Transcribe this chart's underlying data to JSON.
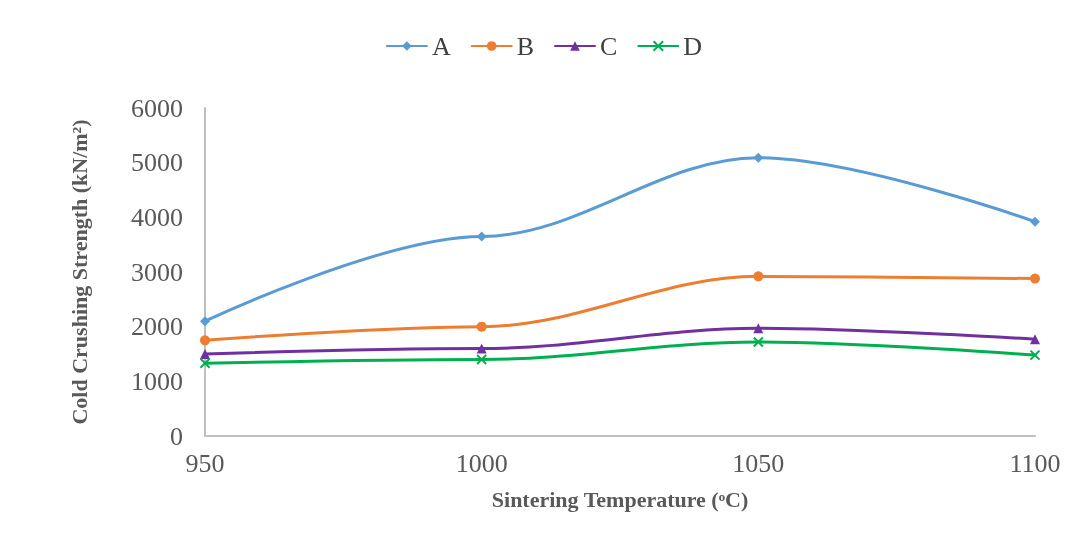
{
  "chart_data": {
    "type": "line",
    "xlabel": "Sintering Temperature (ᵒC)",
    "ylabel": "Cold Crushing Strength (kN/m²)",
    "x": [
      950,
      1000,
      1050,
      1100
    ],
    "series": [
      {
        "name": "A",
        "color": "#5b9bd5",
        "marker": "diamond",
        "values": [
          2100,
          3650,
          5090,
          3920
        ]
      },
      {
        "name": "B",
        "color": "#ed7d31",
        "marker": "circle",
        "values": [
          1750,
          2000,
          2920,
          2880
        ]
      },
      {
        "name": "C",
        "color": "#7030a0",
        "marker": "triangle",
        "values": [
          1500,
          1600,
          1970,
          1770
        ]
      },
      {
        "name": "D",
        "color": "#00b050",
        "marker": "cross",
        "values": [
          1330,
          1400,
          1720,
          1480
        ]
      }
    ],
    "xlim": [
      950,
      1100
    ],
    "xticks": [
      950,
      1000,
      1050,
      1100
    ],
    "ylim": [
      0,
      6000
    ],
    "yticks": [
      0,
      1000,
      2000,
      3000,
      4000,
      5000,
      6000
    ],
    "grid": false,
    "legend": "top",
    "line_style": "solid"
  }
}
